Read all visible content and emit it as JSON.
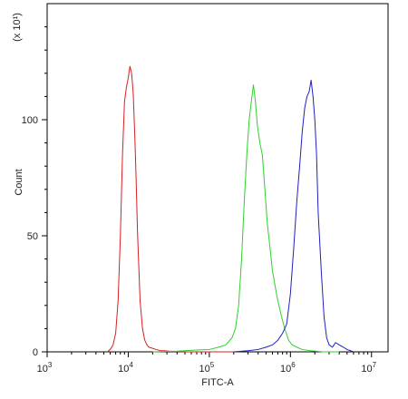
{
  "chart_data": {
    "type": "line",
    "title": "",
    "xlabel": "FITC-A",
    "ylabel": "Count",
    "y_multiplier_label": "(x 10¹)",
    "x_scale": "log10",
    "xlim": [
      1000,
      16000000
    ],
    "ylim": [
      0,
      150
    ],
    "x_ticks": [
      {
        "value": 1000,
        "base": "10",
        "exp": "3"
      },
      {
        "value": 10000,
        "base": "10",
        "exp": "4"
      },
      {
        "value": 100000,
        "base": "10",
        "exp": "5"
      },
      {
        "value": 1000000,
        "base": "10",
        "exp": "6"
      },
      {
        "value": 10000000,
        "base": "10",
        "exp": "7"
      }
    ],
    "y_ticks": [
      {
        "value": 0,
        "label": "0"
      },
      {
        "value": 50,
        "label": "50"
      },
      {
        "value": 100,
        "label": "100"
      }
    ],
    "grid": false,
    "legend": "none",
    "series": [
      {
        "color": "#d62020",
        "x": [
          5500,
          6000,
          6500,
          7000,
          7500,
          8000,
          8500,
          9000,
          9500,
          10000,
          10500,
          11000,
          11500,
          12000,
          12500,
          13000,
          14000,
          15000,
          16000,
          17000,
          18000,
          20000,
          22000,
          25000,
          28000,
          32000,
          38000,
          45000,
          55000,
          70000,
          90000,
          120000,
          160000,
          200000
        ],
        "y": [
          0,
          1,
          3,
          8,
          22,
          50,
          85,
          108,
          114,
          118,
          123,
          120,
          112,
          95,
          75,
          52,
          22,
          10,
          5,
          3,
          2,
          1.5,
          1,
          0.5,
          0.5,
          0.3,
          0.2,
          0.1,
          0,
          0,
          0,
          0,
          0,
          0
        ]
      },
      {
        "color": "#30d030",
        "x": [
          20000,
          40000,
          70000,
          100000,
          130000,
          160000,
          190000,
          210000,
          230000,
          250000,
          270000,
          290000,
          310000,
          330000,
          350000,
          370000,
          390000,
          420000,
          450000,
          480000,
          520000,
          560000,
          600000,
          650000,
          700000,
          780000,
          850000,
          950000,
          1050000,
          1200000,
          1400000,
          1800000,
          2500000,
          4000000
        ],
        "y": [
          0,
          0.3,
          0.8,
          1,
          2,
          3,
          6,
          10,
          20,
          40,
          65,
          85,
          100,
          108,
          115,
          108,
          98,
          90,
          85,
          72,
          55,
          45,
          35,
          28,
          22,
          15,
          10,
          5,
          3,
          2,
          1,
          0.5,
          0,
          0
        ]
      },
      {
        "color": "#2020c0",
        "x": [
          200000,
          300000,
          400000,
          500000,
          600000,
          700000,
          800000,
          900000,
          1000000,
          1100000,
          1200000,
          1300000,
          1400000,
          1500000,
          1600000,
          1700000,
          1800000,
          1900000,
          2000000,
          2100000,
          2200000,
          2400000,
          2600000,
          2800000,
          3000000,
          3300000,
          3600000,
          4000000,
          4500000,
          5000000,
          5500000,
          6000000
        ],
        "y": [
          0,
          0.5,
          1,
          2,
          3,
          5,
          8,
          12,
          25,
          45,
          65,
          80,
          95,
          105,
          110,
          112,
          117,
          110,
          100,
          85,
          60,
          35,
          15,
          6,
          3,
          2,
          4,
          3,
          2,
          1,
          0.5,
          0
        ]
      }
    ]
  }
}
